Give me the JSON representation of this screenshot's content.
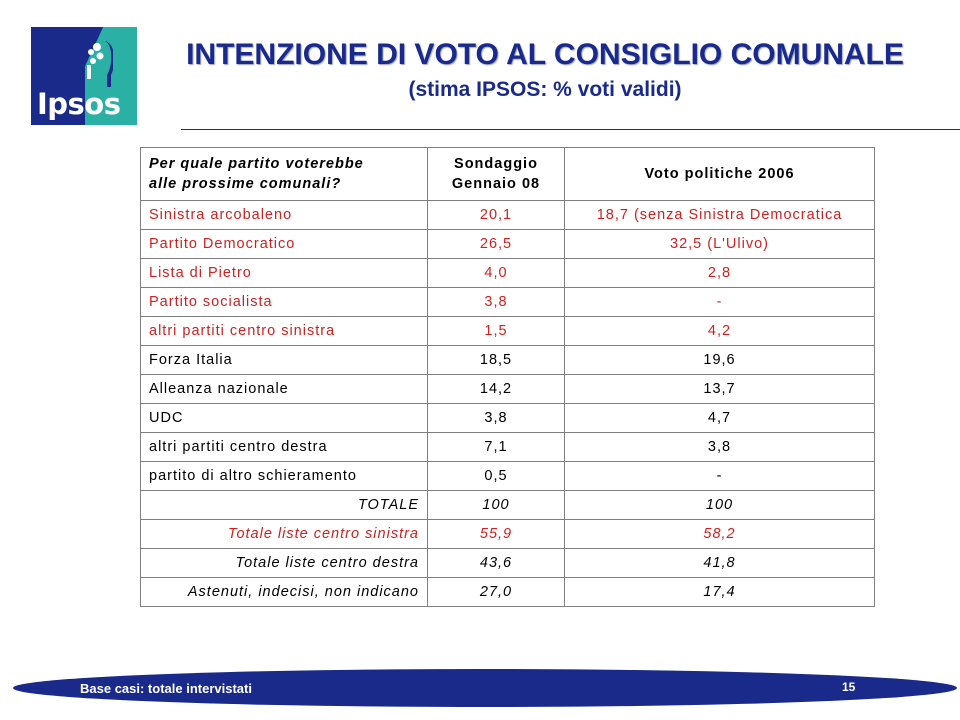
{
  "logo": {
    "word": "Ipsos",
    "colors": {
      "navy": "#1a2a8a",
      "teal": "#2bb0a6"
    }
  },
  "header": {
    "title": "INTENZIONE DI VOTO AL CONSIGLIO COMUNALE",
    "subtitle": "(stima IPSOS: % voti validi)"
  },
  "table": {
    "headers": {
      "question_line1": "Per quale partito voterebbe",
      "question_line2": "alle prossime comunali?",
      "survey_line1": "Sondaggio",
      "survey_line2": "Gennaio 08",
      "vote2006": "Voto politiche 2006"
    },
    "rows": [
      {
        "label": "Sinistra arcobaleno",
        "survey": "20,1",
        "vote2006": "18,7 (senza Sinistra Democratica",
        "color": "#cc2222"
      },
      {
        "label": "Partito Democratico",
        "survey": "26,5",
        "vote2006": "32,5 (L'Ulivo)",
        "color": "#cc2222"
      },
      {
        "label": "Lista di Pietro",
        "survey": "4,0",
        "vote2006": "2,8",
        "color": "#cc2222"
      },
      {
        "label": "Partito socialista",
        "survey": "3,8",
        "vote2006": "-",
        "color": "#cc2222"
      },
      {
        "label": "altri partiti centro sinistra",
        "survey": "1,5",
        "vote2006": "4,2",
        "color": "#cc2222"
      },
      {
        "label": "Forza Italia",
        "survey": "18,5",
        "vote2006": "19,6",
        "color": "#000000"
      },
      {
        "label": "Alleanza nazionale",
        "survey": "14,2",
        "vote2006": "13,7",
        "color": "#000000"
      },
      {
        "label": "UDC",
        "survey": "3,8",
        "vote2006": "4,7",
        "color": "#000000"
      },
      {
        "label": "altri partiti centro destra",
        "survey": "7,1",
        "vote2006": "3,8",
        "color": "#000000"
      },
      {
        "label": "partito di altro schieramento",
        "survey": "0,5",
        "vote2006": "-",
        "color": "#000000"
      }
    ],
    "totals": [
      {
        "label": "TOTALE",
        "survey": "100",
        "vote2006": "100",
        "color": "#000000"
      },
      {
        "label": "Totale liste centro sinistra",
        "survey": "55,9",
        "vote2006": "58,2",
        "color": "#cc2222"
      },
      {
        "label": "Totale liste centro destra",
        "survey": "43,6",
        "vote2006": "41,8",
        "color": "#000000"
      },
      {
        "label": "Astenuti, indecisi, non indicano",
        "survey": "27,0",
        "vote2006": "17,4",
        "color": "#000000"
      }
    ]
  },
  "footer": {
    "base": "Base casi: totale intervistati",
    "page": "15",
    "bar_color": "#1a2a8a"
  }
}
